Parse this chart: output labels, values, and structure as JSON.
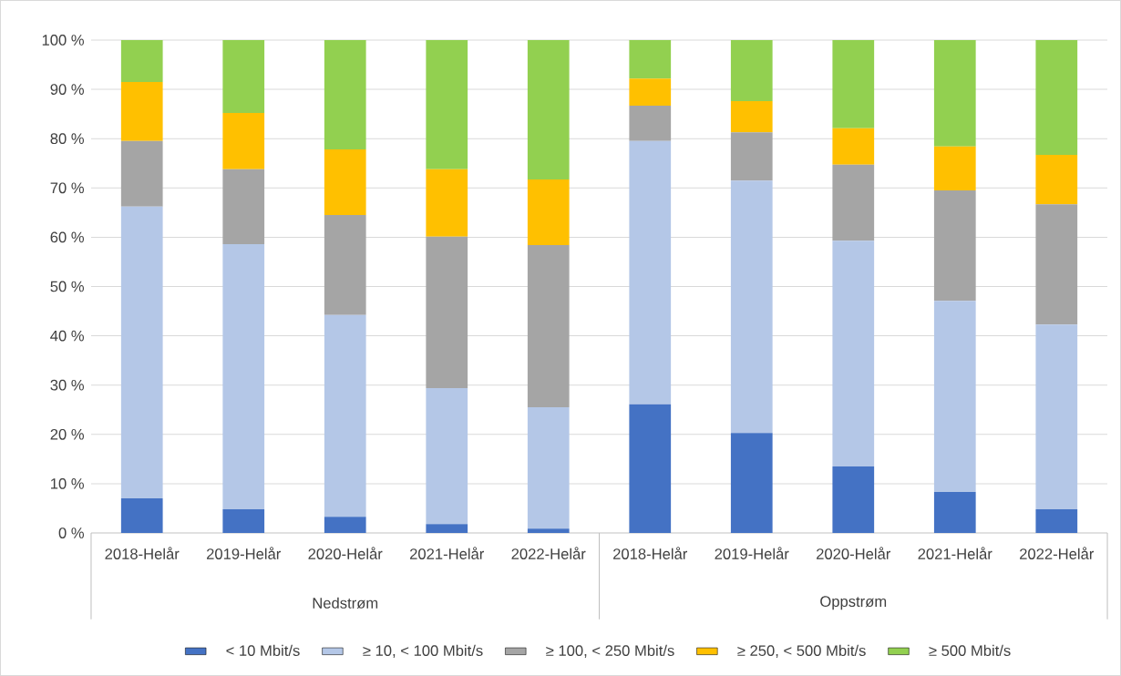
{
  "chart_data": {
    "type": "bar",
    "stacked": true,
    "categories": [
      "2018-Helår",
      "2019-Helår",
      "2020-Helår",
      "2021-Helår",
      "2022-Helår",
      "2018-Helår",
      "2019-Helår",
      "2020-Helår",
      "2021-Helår",
      "2022-Helår"
    ],
    "annotations": [
      "Nedstrøm",
      "Oppstrøm"
    ],
    "series": [
      {
        "name": "< 10 Mbit/s",
        "color": "#4472c4",
        "values": [
          7.0,
          4.8,
          3.3,
          1.8,
          0.9,
          26.1,
          20.3,
          13.5,
          8.3,
          4.8
        ]
      },
      {
        "name": "≥ 10, < 100 Mbit/s",
        "color": "#b4c7e7",
        "values": [
          59.2,
          53.8,
          40.9,
          27.6,
          24.6,
          53.4,
          51.2,
          45.8,
          38.8,
          37.5
        ]
      },
      {
        "name": "≥ 100, < 250 Mbit/s",
        "color": "#a5a5a5",
        "values": [
          13.3,
          15.2,
          20.3,
          30.7,
          32.9,
          7.2,
          9.8,
          15.4,
          22.4,
          24.4
        ]
      },
      {
        "name": "≥ 250, < 500 Mbit/s",
        "color": "#ffc000",
        "values": [
          12.0,
          11.4,
          13.3,
          13.7,
          13.3,
          5.5,
          6.3,
          7.4,
          8.9,
          10.0
        ]
      },
      {
        "name": "≥ 500 Mbit/s",
        "color": "#92d050",
        "values": [
          8.5,
          14.8,
          22.2,
          26.2,
          28.3,
          7.8,
          12.4,
          17.9,
          21.6,
          23.3
        ]
      }
    ],
    "ylim": [
      0,
      100
    ],
    "yticks": [
      {
        "value": 0,
        "label": "0 %"
      },
      {
        "value": 10,
        "label": "10 %"
      },
      {
        "value": 20,
        "label": "20 %"
      },
      {
        "value": 30,
        "label": "30 %"
      },
      {
        "value": 40,
        "label": "40 %"
      },
      {
        "value": 50,
        "label": "50 %"
      },
      {
        "value": 60,
        "label": "60 %"
      },
      {
        "value": 70,
        "label": "70 %"
      },
      {
        "value": 80,
        "label": "80 %"
      },
      {
        "value": 90,
        "label": "90 %"
      },
      {
        "value": 100,
        "label": "100 %"
      }
    ],
    "grid": "y",
    "legend": "bottom"
  }
}
